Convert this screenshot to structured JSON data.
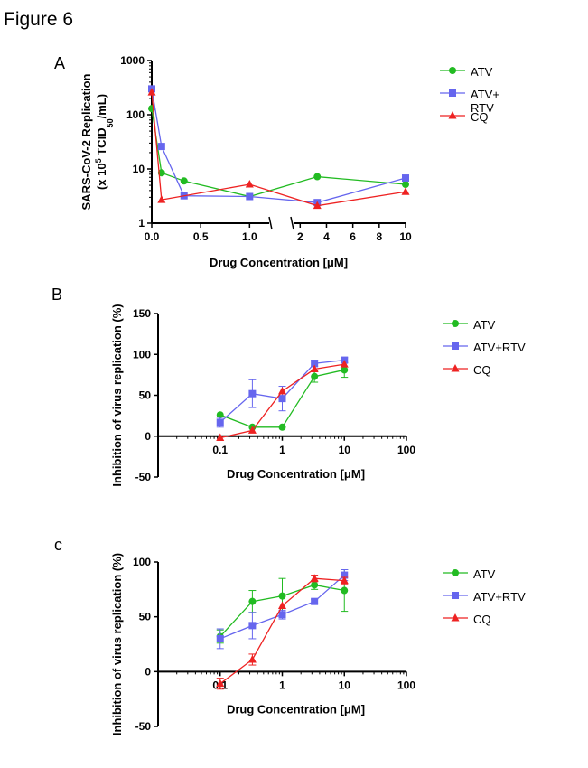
{
  "figure_title": "Figure 6",
  "panels": [
    {
      "letter": "A"
    },
    {
      "letter": "B"
    },
    {
      "letter": "c"
    }
  ],
  "colors": {
    "ATV": "#22bb22",
    "ATV+RTV": "#6666ee",
    "CQ": "#ee2222"
  },
  "chart_data": [
    {
      "type": "line",
      "panel": "A",
      "xlabel": "Drug Concentration [μM]",
      "ylabel_line1": "SARS-CoV-2 Replication",
      "ylabel_line2": "(x 10",
      "ylabel_sup": "5",
      "ylabel_mid": " TCID",
      "ylabel_sub": "50",
      "ylabel_end": "/mL)",
      "y_scale": "log",
      "ylim": [
        1,
        1000
      ],
      "y_ticks": [
        1,
        10,
        100,
        1000
      ],
      "y_tick_labels": [
        "1",
        "10",
        "100",
        "1000"
      ],
      "x_axis_broken": true,
      "x_segment1_range": [
        0,
        1.2
      ],
      "x_segment1_ticks": [
        0,
        0.5,
        1.0
      ],
      "x_segment1_tick_labels": [
        "0.0",
        "0.5",
        "1.0"
      ],
      "x_segment2_range": [
        1.5,
        10
      ],
      "x_segment2_ticks": [
        2,
        4,
        6,
        8,
        10
      ],
      "x_segment2_tick_labels": [
        "2",
        "4",
        "6",
        "8",
        "10"
      ],
      "series": [
        {
          "name": "ATV",
          "marker": "circle",
          "points": [
            [
              0,
              130
            ],
            [
              0.1,
              8.5
            ],
            [
              0.33,
              6.0
            ],
            [
              1.0,
              3.1
            ],
            [
              3.3,
              7.2
            ],
            [
              10,
              5.2
            ]
          ]
        },
        {
          "name": "ATV+ RTV",
          "marker": "square",
          "points": [
            [
              0,
              300
            ],
            [
              0.1,
              26
            ],
            [
              0.33,
              3.2
            ],
            [
              1.0,
              3.1
            ],
            [
              3.3,
              2.4
            ],
            [
              10,
              6.8
            ]
          ]
        },
        {
          "name": "CQ",
          "marker": "triangle",
          "points": [
            [
              0,
              260
            ],
            [
              0.1,
              2.7
            ],
            [
              1.0,
              5.2
            ],
            [
              3.3,
              2.1
            ],
            [
              10,
              3.8
            ]
          ]
        }
      ]
    },
    {
      "type": "line",
      "panel": "B",
      "xlabel": "Drug Concentration [μM]",
      "ylabel": "Inhibition of virus replication (%)",
      "x_scale": "log",
      "xlim": [
        0.01,
        100
      ],
      "x_ticks": [
        0.1,
        1,
        10,
        100
      ],
      "x_tick_labels": [
        "0.1",
        "1",
        "10",
        "100"
      ],
      "ylim": [
        -50,
        150
      ],
      "y_ticks": [
        -50,
        0,
        50,
        100,
        150
      ],
      "y_tick_labels": [
        "-50",
        "0",
        "50",
        "100",
        "150"
      ],
      "series": [
        {
          "name": "ATV",
          "marker": "circle",
          "x": [
            0.1,
            0.33,
            1,
            3.3,
            10
          ],
          "y": [
            26,
            11,
            11,
            73,
            81
          ],
          "err": [
            0,
            0,
            0,
            7,
            9
          ]
        },
        {
          "name": "ATV+RTV",
          "marker": "square",
          "x": [
            0.1,
            0.33,
            1,
            3.3,
            10
          ],
          "y": [
            17,
            52,
            46,
            89,
            93
          ],
          "err": [
            6,
            17,
            15,
            4,
            3
          ]
        },
        {
          "name": "CQ",
          "marker": "triangle",
          "x": [
            0.1,
            0.33,
            1,
            3.3,
            10
          ],
          "y": [
            -2,
            7,
            55,
            82,
            88
          ],
          "err": [
            0,
            0,
            0,
            0,
            0
          ]
        }
      ]
    },
    {
      "type": "line",
      "panel": "c",
      "xlabel": "Drug Concentration [μM]",
      "ylabel": "Inhibition of virus replication (%)",
      "x_scale": "log",
      "xlim": [
        0.01,
        100
      ],
      "x_ticks": [
        0.1,
        1,
        10,
        100
      ],
      "x_tick_labels": [
        "0.1",
        "1",
        "10",
        "100"
      ],
      "ylim": [
        -50,
        100
      ],
      "y_ticks": [
        -50,
        0,
        50,
        100
      ],
      "y_tick_labels": [
        "-50",
        "0",
        "50",
        "100"
      ],
      "series": [
        {
          "name": "ATV",
          "marker": "circle",
          "x": [
            0.1,
            0.33,
            1,
            3.3,
            10
          ],
          "y": [
            32,
            64,
            69,
            79,
            74
          ],
          "err": [
            6,
            10,
            16,
            4,
            19
          ]
        },
        {
          "name": "ATV+RTV",
          "marker": "square",
          "x": [
            0.1,
            0.33,
            1,
            3.3,
            10
          ],
          "y": [
            30,
            42,
            52,
            64,
            88
          ],
          "err": [
            9,
            12,
            4,
            2,
            5
          ]
        },
        {
          "name": "CQ",
          "marker": "triangle",
          "x": [
            0.1,
            0.33,
            1,
            3.3,
            10
          ],
          "y": [
            -11,
            11,
            60,
            85,
            83
          ],
          "err": [
            5,
            5,
            0,
            3,
            3
          ]
        }
      ]
    }
  ],
  "legends": [
    {
      "items": [
        "ATV",
        "ATV+ RTV",
        "CQ"
      ]
    },
    {
      "items": [
        "ATV",
        "ATV+RTV",
        "CQ"
      ]
    },
    {
      "items": [
        "ATV",
        "ATV+RTV",
        "CQ"
      ]
    }
  ]
}
